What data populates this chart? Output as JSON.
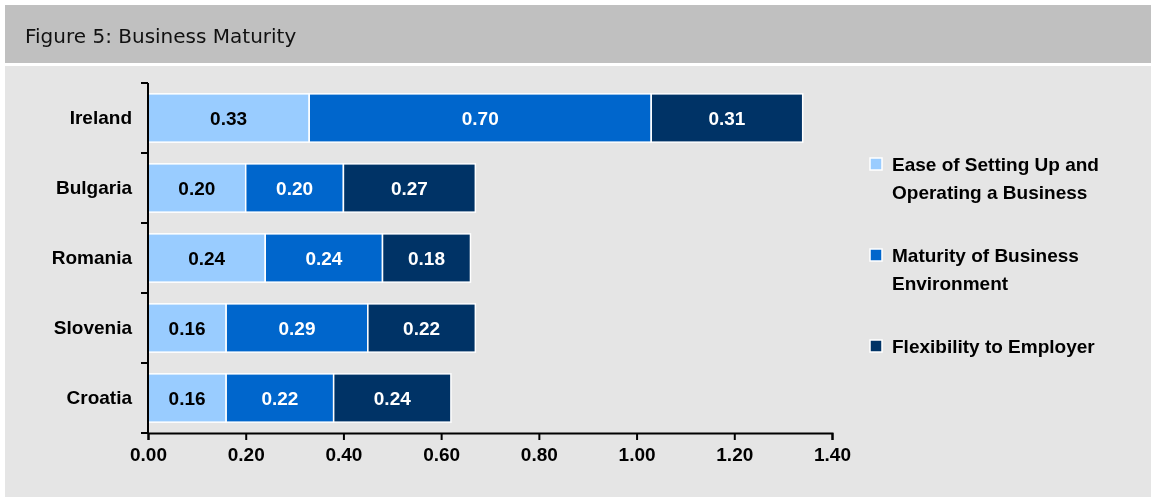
{
  "chart_data": {
    "type": "bar",
    "title": "Figure 5: Business Maturity",
    "orientation": "horizontal",
    "stacked": true,
    "legend": "right",
    "categories": [
      "Ireland",
      "Bulgaria",
      "Romania",
      "Slovenia",
      "Croatia"
    ],
    "series": [
      {
        "name": "Ease of Setting Up and Operating a Business",
        "color": "#99ccff",
        "values": [
          0.33,
          0.2,
          0.24,
          0.16,
          0.16
        ],
        "value_labels": [
          "0.33",
          "0.20",
          "0.24",
          "0.16",
          "0.16"
        ]
      },
      {
        "name": "Maturity of Business Environment",
        "color": "#0066cc",
        "values": [
          0.7,
          0.2,
          0.24,
          0.29,
          0.22
        ],
        "value_labels": [
          "0.70",
          "0.20",
          "0.24",
          "0.29",
          "0.22"
        ]
      },
      {
        "name": "Flexibility to Employer",
        "color": "#003366",
        "values": [
          0.31,
          0.27,
          0.18,
          0.22,
          0.24
        ],
        "value_labels": [
          "0.31",
          "0.27",
          "0.18",
          "0.22",
          "0.24"
        ]
      }
    ],
    "xlim": [
      0,
      1.4
    ],
    "xticks": [
      {
        "value": 0,
        "label": "0.00"
      },
      {
        "value": 0.2,
        "label": "0.20"
      },
      {
        "value": 0.4,
        "label": "0.40"
      },
      {
        "value": 0.6,
        "label": "0.60"
      },
      {
        "value": 0.8,
        "label": "0.80"
      },
      {
        "value": 1.0,
        "label": "1.00"
      },
      {
        "value": 1.2,
        "label": "1.20"
      },
      {
        "value": 1.4,
        "label": "1.40"
      }
    ]
  }
}
